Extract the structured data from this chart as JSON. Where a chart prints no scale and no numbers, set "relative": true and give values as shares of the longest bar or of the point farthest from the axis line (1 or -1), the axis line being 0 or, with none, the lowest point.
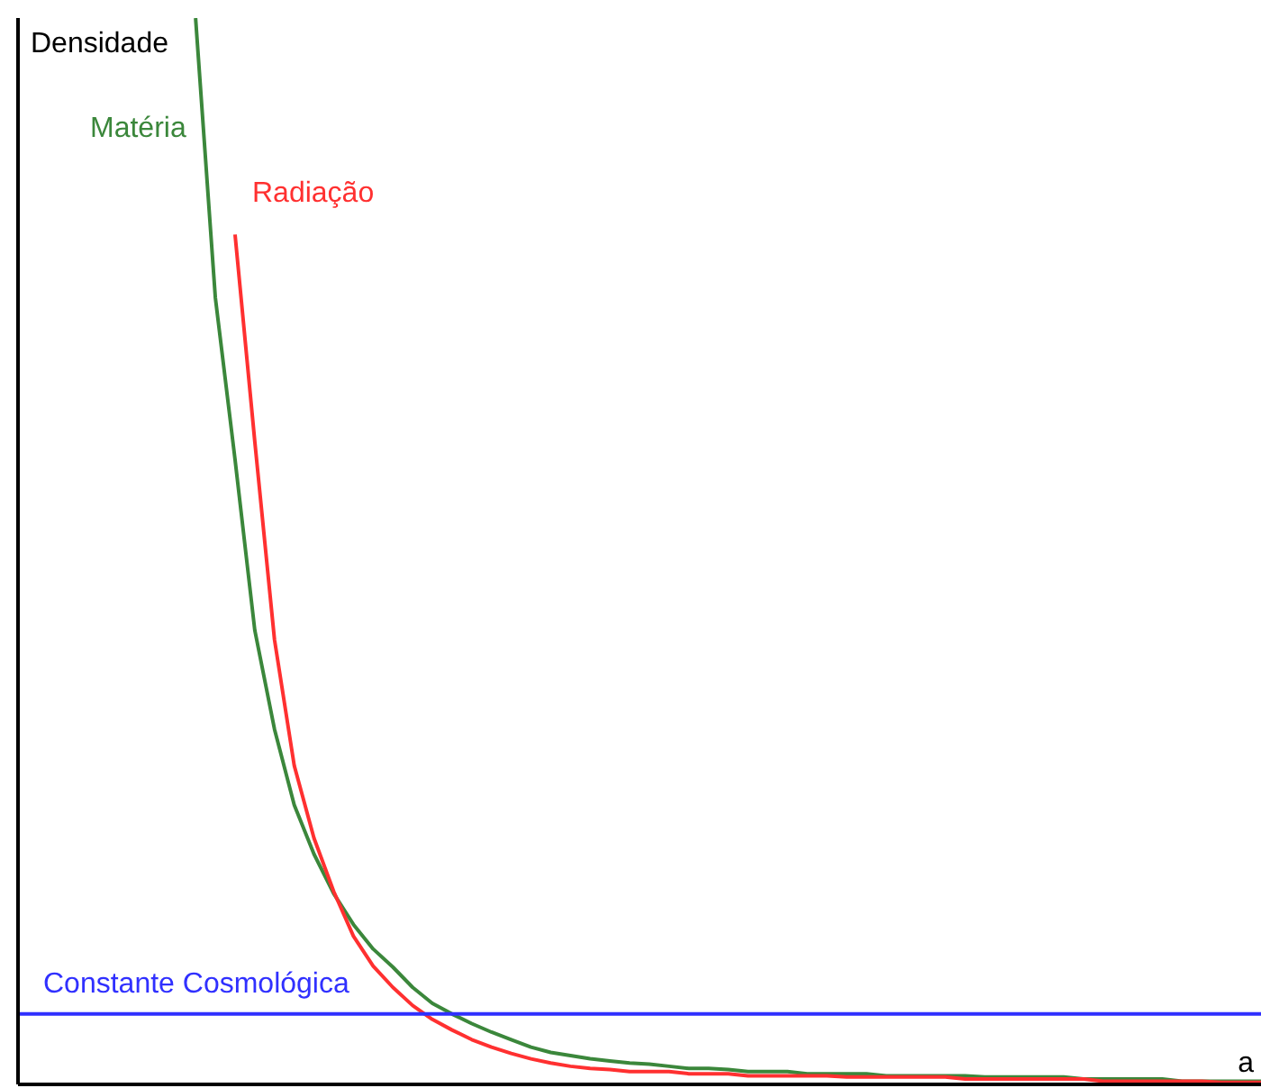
{
  "chart_data": {
    "type": "line",
    "relative": true,
    "xlabel": "a",
    "annotations": [
      "Densidade"
    ],
    "marker": "none",
    "categories": [
      null,
      null,
      null,
      null,
      null,
      null,
      null,
      null,
      null,
      null,
      null,
      null,
      null,
      null,
      null,
      null,
      null,
      null,
      null,
      null,
      null,
      null,
      null,
      null,
      null,
      null,
      null,
      null,
      null,
      null,
      null,
      null,
      null,
      null,
      null,
      null,
      null,
      null,
      null,
      null,
      null,
      null,
      null,
      null,
      null,
      null,
      null,
      null,
      null,
      null,
      null,
      null,
      null,
      null,
      null,
      null,
      null,
      null,
      null,
      null,
      null,
      null,
      null,
      null
    ],
    "series": [
      {
        "name": "Matéria",
        "color": "#3b873b",
        "values": [
          null,
          null,
          null,
          null,
          null,
          null,
          null,
          null,
          null,
          1,
          0.738,
          0.586,
          0.426,
          0.333,
          0.262,
          0.216,
          0.179,
          0.15,
          0.127,
          0.11,
          0.091,
          0.076,
          0.066,
          0.057,
          0.049,
          0.042,
          0.035,
          0.03,
          0.027,
          0.024,
          0.022,
          0.02,
          0.019,
          0.017,
          0.015,
          0.015,
          0.014,
          0.012,
          0.012,
          0.012,
          0.01,
          0.01,
          0.01,
          0.01,
          0.008,
          0.008,
          0.008,
          0.008,
          0.008,
          0.007,
          0.007,
          0.007,
          0.007,
          0.007,
          0.005,
          0.005,
          0.005,
          0.005,
          0.005,
          0.003,
          0.003,
          0.003,
          0.003,
          0.003
        ]
      },
      {
        "name": "Radiação",
        "color": "#ff3030",
        "values": [
          null,
          null,
          null,
          null,
          null,
          null,
          null,
          null,
          null,
          null,
          null,
          0.797,
          0.603,
          0.417,
          0.299,
          0.231,
          0.181,
          0.139,
          0.111,
          0.091,
          0.074,
          0.061,
          0.051,
          0.042,
          0.035,
          0.029,
          0.024,
          0.02,
          0.017,
          0.015,
          0.014,
          0.012,
          0.012,
          0.012,
          0.01,
          0.01,
          0.01,
          0.008,
          0.008,
          0.008,
          0.008,
          0.008,
          0.007,
          0.007,
          0.007,
          0.007,
          0.007,
          0.007,
          0.005,
          0.005,
          0.005,
          0.005,
          0.005,
          0.005,
          0.005,
          0.003,
          0.003,
          0.003,
          0.003,
          0.003,
          0.003,
          0.002,
          0.002,
          0.002
        ]
      },
      {
        "name": "Constante Cosmológica",
        "color": "#3030ff",
        "values": [
          0.066,
          0.066,
          0.066,
          0.066,
          0.066,
          0.066,
          0.066,
          0.066,
          0.066,
          0.066,
          0.066,
          0.066,
          0.066,
          0.066,
          0.066,
          0.066,
          0.066,
          0.066,
          0.066,
          0.066,
          0.066,
          0.066,
          0.066,
          0.066,
          0.066,
          0.066,
          0.066,
          0.066,
          0.066,
          0.066,
          0.066,
          0.066,
          0.066,
          0.066,
          0.066,
          0.066,
          0.066,
          0.066,
          0.066,
          0.066,
          0.066,
          0.066,
          0.066,
          0.066,
          0.066,
          0.066,
          0.066,
          0.066,
          0.066,
          0.066,
          0.066,
          0.066,
          0.066,
          0.066,
          0.066,
          0.066,
          0.066,
          0.066,
          0.066,
          0.066,
          0.066,
          0.066,
          0.066,
          0.066
        ]
      }
    ]
  }
}
